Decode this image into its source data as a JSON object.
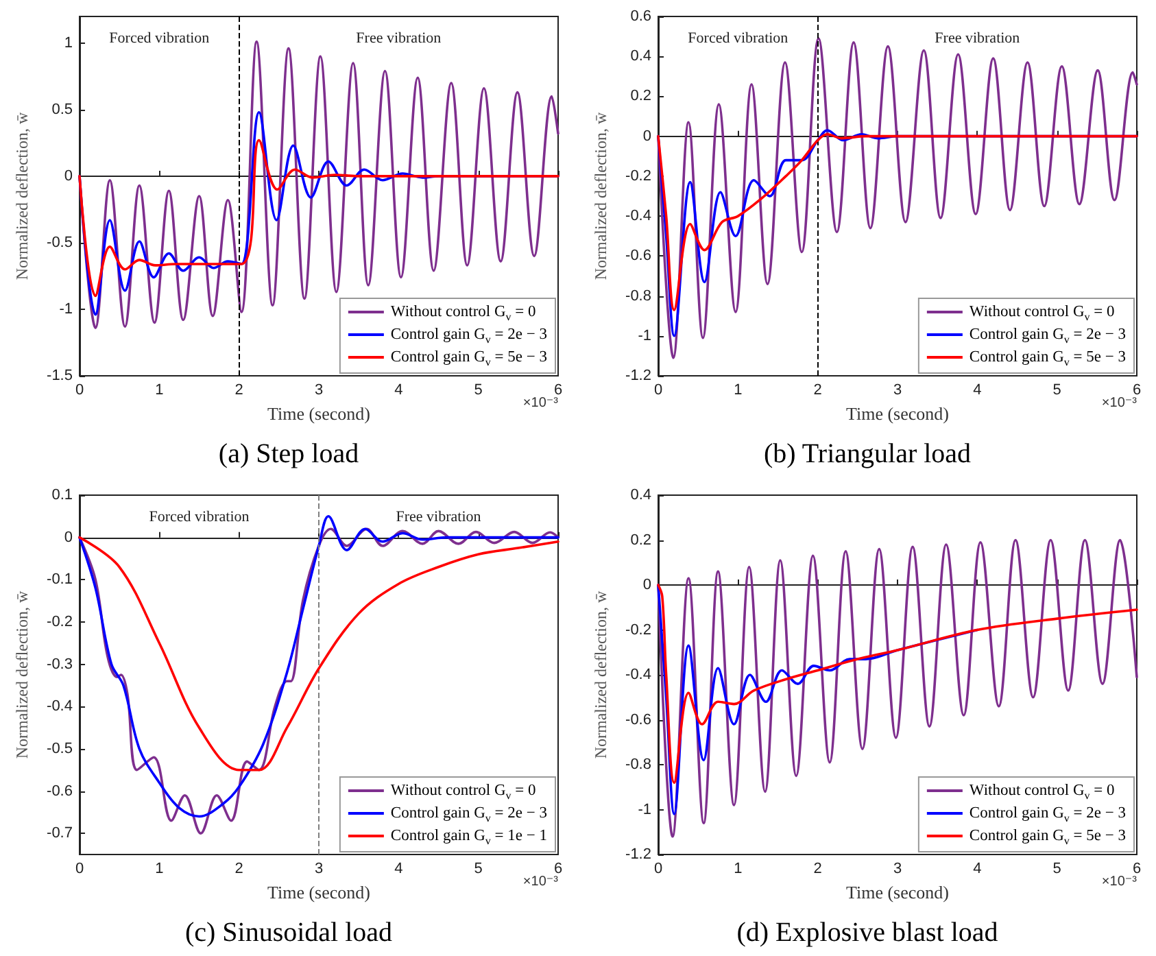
{
  "chart_data": [
    {
      "type": "line",
      "title": "(a) Step load",
      "xlabel": "Time (second)",
      "ylabel": "Normalized deflection, w̄",
      "xlim": [
        0,
        6
      ],
      "xticks": [
        0,
        1,
        2,
        3,
        4,
        5,
        6
      ],
      "ylim": [
        -1.5,
        1.2
      ],
      "yticks": [
        -1.5,
        -1,
        -0.5,
        0,
        0.5,
        1
      ],
      "legend": "bottom right",
      "marker": "none",
      "line_style": "solid",
      "ref_lines": [
        {
          "axis": "x",
          "value": 2,
          "color": "#000000",
          "line_style": "dashed"
        }
      ],
      "annotations": [
        "Forced vibration",
        "Free vibration",
        "×10⁻³"
      ],
      "series": [
        {
          "name": "Without control G$_{v}$ = 0",
          "color": "#7e2f8e",
          "x": [
            0,
            0.2,
            0.38,
            0.57,
            0.75,
            0.94,
            1.12,
            1.3,
            1.5,
            1.67,
            1.86,
            2.03,
            2.22,
            2.42,
            2.62,
            2.82,
            3.02,
            3.22,
            3.43,
            3.62,
            3.83,
            4.03,
            4.24,
            4.44,
            4.66,
            4.86,
            5.07,
            5.28,
            5.49,
            5.7,
            5.92,
            6
          ],
          "values": [
            0,
            -1.14,
            -0.03,
            -1.13,
            -0.07,
            -1.1,
            -0.11,
            -1.08,
            -0.15,
            -1.05,
            -0.18,
            -1.02,
            1.01,
            -0.97,
            0.96,
            -0.92,
            0.9,
            -0.87,
            0.85,
            -0.82,
            0.79,
            -0.76,
            0.74,
            -0.71,
            0.7,
            -0.67,
            0.66,
            -0.64,
            0.63,
            -0.6,
            0.6,
            0.32
          ]
        },
        {
          "name": "Control gain G$_{v}$ = 2e − 3",
          "color": "#0000ff",
          "x": [
            0,
            0.2,
            0.38,
            0.57,
            0.75,
            0.93,
            1.12,
            1.3,
            1.5,
            1.68,
            1.86,
            2.03,
            2.25,
            2.47,
            2.68,
            2.9,
            3.12,
            3.35,
            3.57,
            3.8,
            4.05,
            4.3,
            4.5,
            6
          ],
          "values": [
            0,
            -1.04,
            -0.33,
            -0.86,
            -0.49,
            -0.76,
            -0.58,
            -0.71,
            -0.61,
            -0.69,
            -0.64,
            -0.66,
            0.48,
            -0.33,
            0.23,
            -0.16,
            0.11,
            -0.07,
            0.05,
            -0.03,
            0.02,
            -0.01,
            0,
            0
          ]
        },
        {
          "name": "Control gain G$_{v}$ = 5e − 3",
          "color": "#ff0000",
          "x": [
            0,
            0.2,
            0.38,
            0.57,
            0.75,
            0.95,
            1.2,
            2.03,
            2.25,
            2.48,
            2.7,
            2.92,
            3.2,
            3.5,
            6
          ],
          "values": [
            0,
            -0.9,
            -0.53,
            -0.7,
            -0.63,
            -0.67,
            -0.66,
            -0.66,
            0.27,
            -0.1,
            0.05,
            -0.01,
            0.01,
            0,
            0
          ]
        }
      ]
    },
    {
      "type": "line",
      "title": "(b) Triangular load",
      "xlabel": "Time (second)",
      "ylabel": "Normalized deflection, w̄",
      "xlim": [
        0,
        6
      ],
      "xticks": [
        0,
        1,
        2,
        3,
        4,
        5,
        6
      ],
      "ylim": [
        -1.2,
        0.6
      ],
      "yticks": [
        -1.2,
        -1,
        -0.8,
        -0.6,
        -0.4,
        -0.2,
        0,
        0.2,
        0.4,
        0.6
      ],
      "legend": "bottom right",
      "marker": "none",
      "line_style": "solid",
      "ref_lines": [
        {
          "axis": "x",
          "value": 2,
          "color": "#000000",
          "line_style": "dashed"
        }
      ],
      "annotations": [
        "Forced vibration",
        "Free vibration",
        "×10⁻³"
      ],
      "series": [
        {
          "name": "Without control G$_{v}$ = 0",
          "color": "#7e2f8e",
          "x": [
            0,
            0.19,
            0.38,
            0.56,
            0.76,
            0.97,
            1.17,
            1.37,
            1.59,
            1.8,
            2.01,
            2.24,
            2.45,
            2.66,
            2.88,
            3.1,
            3.33,
            3.54,
            3.76,
            3.98,
            4.2,
            4.41,
            4.63,
            4.84,
            5.06,
            5.28,
            5.51,
            5.72,
            5.95,
            6
          ],
          "values": [
            0,
            -1.11,
            0.07,
            -1.01,
            0.16,
            -0.88,
            0.26,
            -0.74,
            0.37,
            -0.58,
            0.49,
            -0.48,
            0.47,
            -0.46,
            0.45,
            -0.43,
            0.43,
            -0.41,
            0.41,
            -0.39,
            0.39,
            -0.37,
            0.37,
            -0.35,
            0.35,
            -0.34,
            0.33,
            -0.32,
            0.32,
            0.26
          ]
        },
        {
          "name": "Control gain G$_{v}$ = 2e − 3",
          "color": "#0000ff",
          "x": [
            0,
            0.1,
            0.2,
            0.4,
            0.58,
            0.78,
            0.97,
            1.2,
            1.4,
            1.6,
            1.8,
            2,
            2.12,
            2.32,
            2.55,
            2.75,
            3,
            6
          ],
          "values": [
            0,
            -0.5,
            -1,
            -0.23,
            -0.73,
            -0.28,
            -0.5,
            -0.22,
            -0.3,
            -0.12,
            -0.12,
            -0.02,
            0.03,
            -0.02,
            0.01,
            -0.01,
            0,
            0
          ]
        },
        {
          "name": "Control gain G$_{v}$ = 5e − 3",
          "color": "#ff0000",
          "x": [
            0,
            0.1,
            0.2,
            0.4,
            0.58,
            0.8,
            1,
            1.3,
            1.6,
            1.8,
            2,
            2.12,
            2.3,
            2.6,
            6
          ],
          "values": [
            0,
            -0.4,
            -0.87,
            -0.44,
            -0.57,
            -0.43,
            -0.4,
            -0.31,
            -0.2,
            -0.12,
            -0.02,
            0.01,
            -0.01,
            0,
            0
          ]
        }
      ]
    },
    {
      "type": "line",
      "title": "(c) Sinusoidal load",
      "xlabel": "Time (second)",
      "ylabel": "Normalized deflection, w̄",
      "xlim": [
        0,
        6
      ],
      "xticks": [
        0,
        1,
        2,
        3,
        4,
        5,
        6
      ],
      "ylim": [
        -0.75,
        0.1
      ],
      "yticks": [
        -0.7,
        -0.6,
        -0.5,
        -0.4,
        -0.3,
        -0.2,
        -0.1,
        0,
        0.1
      ],
      "legend": "bottom right",
      "marker": "none",
      "line_style": "solid",
      "ref_lines": [
        {
          "axis": "x",
          "value": 3,
          "color": "#808080",
          "line_style": "dashed"
        }
      ],
      "annotations": [
        "Forced vibration",
        "Free vibration",
        "×10⁻³"
      ],
      "series": [
        {
          "name": "Without control G$_{v}$ = 0",
          "color": "#7e2f8e",
          "x": [
            0,
            0.2,
            0.35,
            0.47,
            0.52,
            0.6,
            0.72,
            0.93,
            1.15,
            1.32,
            1.52,
            1.72,
            1.9,
            2.1,
            2.25,
            2.45,
            2.6,
            2.65,
            2.8,
            3,
            3.15,
            3.35,
            3.6,
            3.8,
            4.05,
            4.3,
            4.5,
            4.75,
            4.97,
            5.2,
            5.45,
            5.68,
            5.9,
            6
          ],
          "values": [
            0,
            -0.1,
            -0.28,
            -0.33,
            -0.325,
            -0.37,
            -0.55,
            -0.52,
            -0.67,
            -0.61,
            -0.7,
            -0.61,
            -0.67,
            -0.53,
            -0.55,
            -0.4,
            -0.34,
            -0.34,
            -0.15,
            -0.02,
            0.02,
            -0.02,
            0.02,
            -0.02,
            0.015,
            -0.015,
            0.015,
            -0.015,
            0.013,
            -0.013,
            0.013,
            -0.013,
            0.012,
            0
          ]
        },
        {
          "name": "Control gain G$_{v}$ = 2e − 3",
          "color": "#0000ff",
          "x": [
            0,
            0.2,
            0.4,
            0.55,
            0.75,
            1,
            1.25,
            1.5,
            1.8,
            2,
            2.3,
            2.6,
            2.8,
            3,
            3.12,
            3.35,
            3.58,
            3.8,
            4.05,
            4.3,
            4.6,
            6
          ],
          "values": [
            0,
            -0.12,
            -0.3,
            -0.35,
            -0.5,
            -0.58,
            -0.64,
            -0.66,
            -0.63,
            -0.59,
            -0.49,
            -0.32,
            -0.17,
            -0.02,
            0.05,
            -0.03,
            0.02,
            -0.01,
            0.01,
            -0.005,
            0,
            0
          ]
        },
        {
          "name": "Control gain G$_{v}$ = 1e − 1",
          "color": "#ff0000",
          "x": [
            0,
            0.5,
            1,
            1.5,
            2,
            2.25,
            2.6,
            3,
            3.5,
            4,
            4.5,
            5,
            5.5,
            6
          ],
          "values": [
            0,
            -0.07,
            -0.25,
            -0.45,
            -0.55,
            -0.55,
            -0.45,
            -0.31,
            -0.18,
            -0.11,
            -0.07,
            -0.04,
            -0.025,
            -0.01
          ]
        }
      ]
    },
    {
      "type": "line",
      "title": "(d) Explosive blast load",
      "xlabel": "Time (second)",
      "ylabel": "Normalized deflection, w̄",
      "xlim": [
        0,
        6
      ],
      "xticks": [
        0,
        1,
        2,
        3,
        4,
        5,
        6
      ],
      "ylim": [
        -1.2,
        0.4
      ],
      "yticks": [
        -1.2,
        -1,
        -0.8,
        -0.6,
        -0.4,
        -0.2,
        0,
        0.2,
        0.4
      ],
      "legend": "bottom right",
      "marker": "none",
      "line_style": "solid",
      "annotations": [
        "×10⁻³"
      ],
      "series": [
        {
          "name": "Without control G$_{v}$ = 0",
          "color": "#7e2f8e",
          "x": [
            0,
            0.18,
            0.38,
            0.57,
            0.75,
            0.95,
            1.14,
            1.34,
            1.53,
            1.73,
            1.94,
            2.15,
            2.35,
            2.56,
            2.77,
            2.98,
            3.19,
            3.4,
            3.61,
            3.83,
            4.04,
            4.27,
            4.48,
            4.7,
            4.92,
            5.14,
            5.35,
            5.57,
            5.79,
            6
          ],
          "values": [
            0,
            -1.12,
            0.03,
            -1.06,
            0.06,
            -0.98,
            0.08,
            -0.92,
            0.11,
            -0.85,
            0.13,
            -0.79,
            0.15,
            -0.73,
            0.16,
            -0.68,
            0.17,
            -0.63,
            0.18,
            -0.58,
            0.19,
            -0.54,
            0.2,
            -0.5,
            0.2,
            -0.47,
            0.2,
            -0.44,
            0.2,
            -0.41
          ]
        },
        {
          "name": "Control gain G$_{v}$ = 2e − 3",
          "color": "#0000ff",
          "x": [
            0,
            0.1,
            0.2,
            0.38,
            0.57,
            0.75,
            0.95,
            1.15,
            1.35,
            1.55,
            1.75,
            1.95,
            2.15,
            2.4,
            2.6,
            3,
            4
          ],
          "values": [
            0,
            -0.5,
            -1.02,
            -0.27,
            -0.78,
            -0.37,
            -0.62,
            -0.4,
            -0.52,
            -0.38,
            -0.44,
            -0.36,
            -0.38,
            -0.33,
            -0.33,
            -0.29,
            -0.2
          ]
        },
        {
          "name": "Control gain G$_{v}$ = 5e − 3",
          "color": "#ff0000",
          "x": [
            0,
            0.05,
            0.1,
            0.2,
            0.38,
            0.55,
            0.75,
            0.95,
            1.2,
            1.6,
            2,
            2.5,
            3,
            4,
            5,
            6
          ],
          "values": [
            0,
            -0.05,
            -0.4,
            -0.88,
            -0.48,
            -0.62,
            -0.52,
            -0.53,
            -0.47,
            -0.42,
            -0.38,
            -0.33,
            -0.29,
            -0.2,
            -0.15,
            -0.11
          ]
        }
      ]
    }
  ]
}
